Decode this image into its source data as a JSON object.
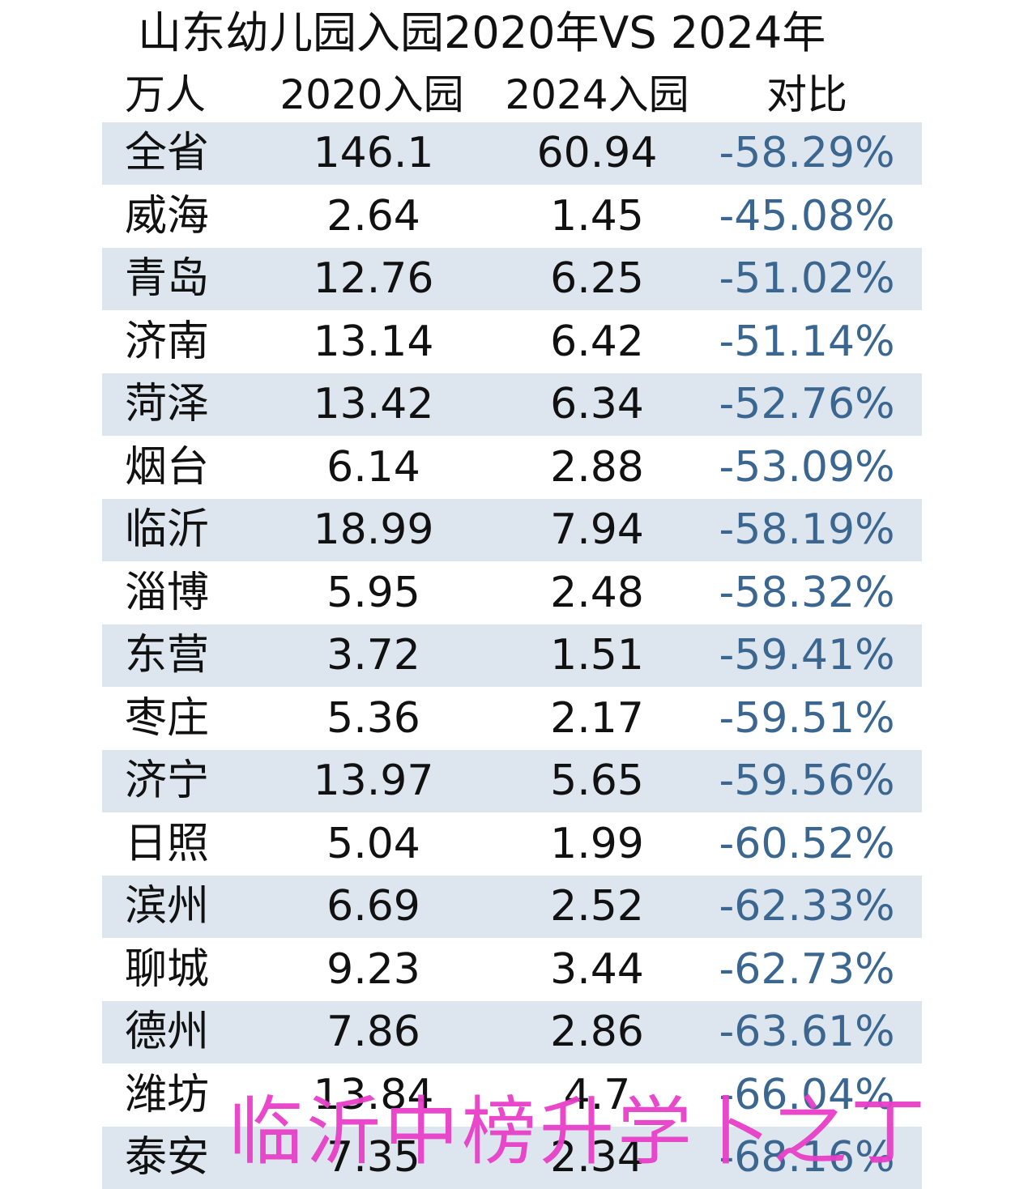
{
  "title": "山东幼儿园入园2020年VS 2024年",
  "table": {
    "headers": [
      "万人",
      "2020入园",
      "2024入园",
      "对比"
    ],
    "rows": [
      {
        "region": "全省",
        "y2020": "146.1",
        "y2024": "60.94",
        "change": "-58.29%"
      },
      {
        "region": "威海",
        "y2020": "2.64",
        "y2024": "1.45",
        "change": "-45.08%"
      },
      {
        "region": "青岛",
        "y2020": "12.76",
        "y2024": "6.25",
        "change": "-51.02%"
      },
      {
        "region": "济南",
        "y2020": "13.14",
        "y2024": "6.42",
        "change": "-51.14%"
      },
      {
        "region": "菏泽",
        "y2020": "13.42",
        "y2024": "6.34",
        "change": "-52.76%"
      },
      {
        "region": "烟台",
        "y2020": "6.14",
        "y2024": "2.88",
        "change": "-53.09%"
      },
      {
        "region": "临沂",
        "y2020": "18.99",
        "y2024": "7.94",
        "change": "-58.19%"
      },
      {
        "region": "淄博",
        "y2020": "5.95",
        "y2024": "2.48",
        "change": "-58.32%"
      },
      {
        "region": "东营",
        "y2020": "3.72",
        "y2024": "1.51",
        "change": "-59.41%"
      },
      {
        "region": "枣庄",
        "y2020": "5.36",
        "y2024": "2.17",
        "change": "-59.51%"
      },
      {
        "region": "济宁",
        "y2020": "13.97",
        "y2024": "5.65",
        "change": "-59.56%"
      },
      {
        "region": "日照",
        "y2020": "5.04",
        "y2024": "1.99",
        "change": "-60.52%"
      },
      {
        "region": "滨州",
        "y2020": "6.69",
        "y2024": "2.52",
        "change": "-62.33%"
      },
      {
        "region": "聊城",
        "y2020": "9.23",
        "y2024": "3.44",
        "change": "-62.73%"
      },
      {
        "region": "德州",
        "y2020": "7.86",
        "y2024": "2.86",
        "change": "-63.61%"
      },
      {
        "region": "潍坊",
        "y2020": "13.84",
        "y2024": "4.7",
        "change": "-66.04%"
      },
      {
        "region": "泰安",
        "y2020": "7.35",
        "y2024": "2.34",
        "change": "-68.16%"
      }
    ]
  },
  "watermark": "临沂中榜升学卜之丁",
  "colors": {
    "row_shade": "#dde6ef",
    "change_text": "#3a6690",
    "watermark": "#e83fc8"
  }
}
